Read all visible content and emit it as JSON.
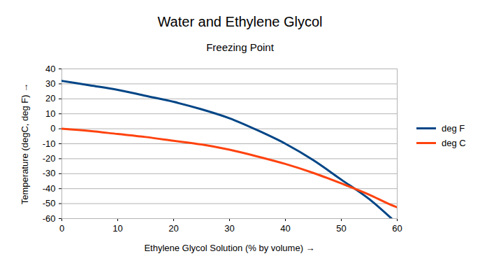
{
  "chart_data": {
    "type": "line",
    "title": "Water and Ethylene Glycol",
    "subtitle": "Freezing Point",
    "x_label": "Ethylene Glycol Solution (% by volume)",
    "y_label": "Temperature (degC, deg F)",
    "x": [
      0,
      5,
      10,
      15,
      20,
      25,
      30,
      35,
      40,
      45,
      50,
      55,
      59,
      60
    ],
    "series": [
      {
        "name": "deg F",
        "color": "#004586",
        "values": [
          32,
          29,
          26,
          22,
          18,
          13,
          7,
          -1,
          -10,
          -21,
          -34,
          -47,
          -60,
          null
        ]
      },
      {
        "name": "deg C",
        "color": "#ff420e",
        "values": [
          0,
          -1.5,
          -3.5,
          -5.5,
          -8,
          -10.5,
          -14,
          -18.5,
          -23.5,
          -29.5,
          -36.5,
          -44,
          -51,
          -52.5
        ]
      }
    ],
    "xlim": [
      0,
      60
    ],
    "xticks": [
      0,
      10,
      20,
      30,
      40,
      50,
      60
    ],
    "ylim": [
      -60,
      40
    ],
    "yticks": [
      -60,
      -50,
      -40,
      -30,
      -20,
      -10,
      0,
      10,
      20,
      30,
      40
    ],
    "grid": true,
    "legend": "right"
  }
}
